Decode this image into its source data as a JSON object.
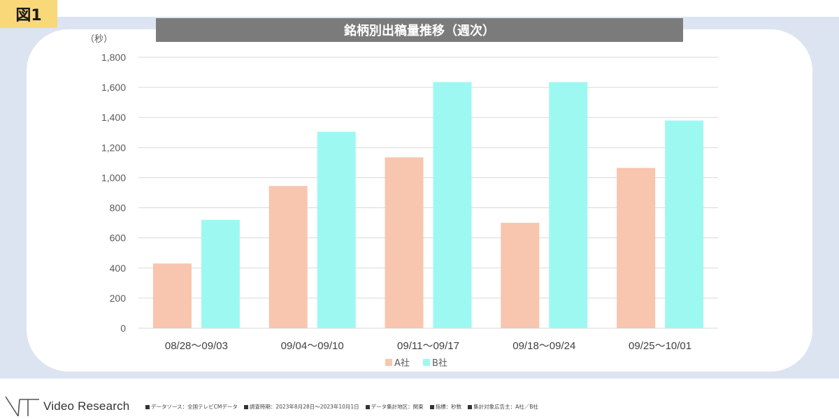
{
  "figure_label": "図1",
  "brand": {
    "name": "Video Research"
  },
  "footnotes": [
    "データソース：全国テレビCMデータ",
    "調査時期：2023年8月28日〜2023年10月1日",
    "データ集計地区：関東",
    "指標：秒数",
    "集計対象広告主：A社／B社"
  ],
  "colors": {
    "series_a": "#f8c5ae",
    "series_b": "#9ef8f2",
    "title_bg": "#7b7b7b",
    "panel_bg": "#dde4f1",
    "label_bg": "#f9d879"
  },
  "chart_data": {
    "type": "bar",
    "title": "銘柄別出稿量推移（週次）",
    "ylabel": "（秒）",
    "xlabel": "",
    "ylim": [
      0,
      1800
    ],
    "yticks": [
      0,
      200,
      400,
      600,
      800,
      1000,
      1200,
      1400,
      1600,
      1800
    ],
    "ytick_labels": [
      "0",
      "200",
      "400",
      "600",
      "800",
      "1,000",
      "1,200",
      "1,400",
      "1,600",
      "1,800"
    ],
    "categories": [
      "08/28～09/03",
      "09/04～09/10",
      "09/11～09/17",
      "09/18～09/24",
      "09/25～10/01"
    ],
    "series": [
      {
        "name": "A社",
        "values": [
          430,
          945,
          1135,
          700,
          1065
        ]
      },
      {
        "name": "B社",
        "values": [
          720,
          1305,
          1635,
          1635,
          1380
        ]
      }
    ],
    "grid": true,
    "legend": "bottom"
  }
}
